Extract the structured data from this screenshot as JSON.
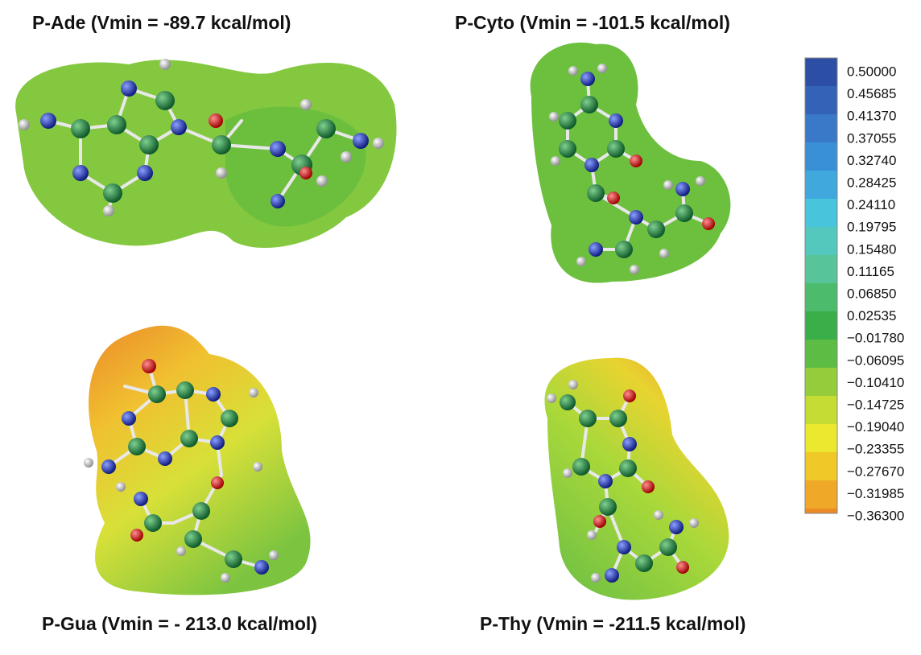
{
  "panels": [
    {
      "title": "P-Ade (Vmin = -89.7 kcal/mol)"
    },
    {
      "title": "P-Cyto (Vmin = -101.5 kcal/mol)"
    },
    {
      "title": "P-Gua (Vmin = - 213.0 kcal/mol)"
    },
    {
      "title": "P-Thy (Vmin = -211.5 kcal/mol)"
    }
  ],
  "colorbar": {
    "labels": [
      "0.50000",
      "0.45685",
      "0.41370",
      "0.37055",
      "0.32740",
      "0.28425",
      "0.24110",
      "0.19795",
      "0.15480",
      "0.11165",
      "0.06850",
      "0.02535",
      "−0.01780",
      "−0.06095",
      "−0.10410",
      "−0.14725",
      "−0.19040",
      "−0.23355",
      "−0.27670",
      "−0.31985",
      "−0.36300"
    ]
  }
}
